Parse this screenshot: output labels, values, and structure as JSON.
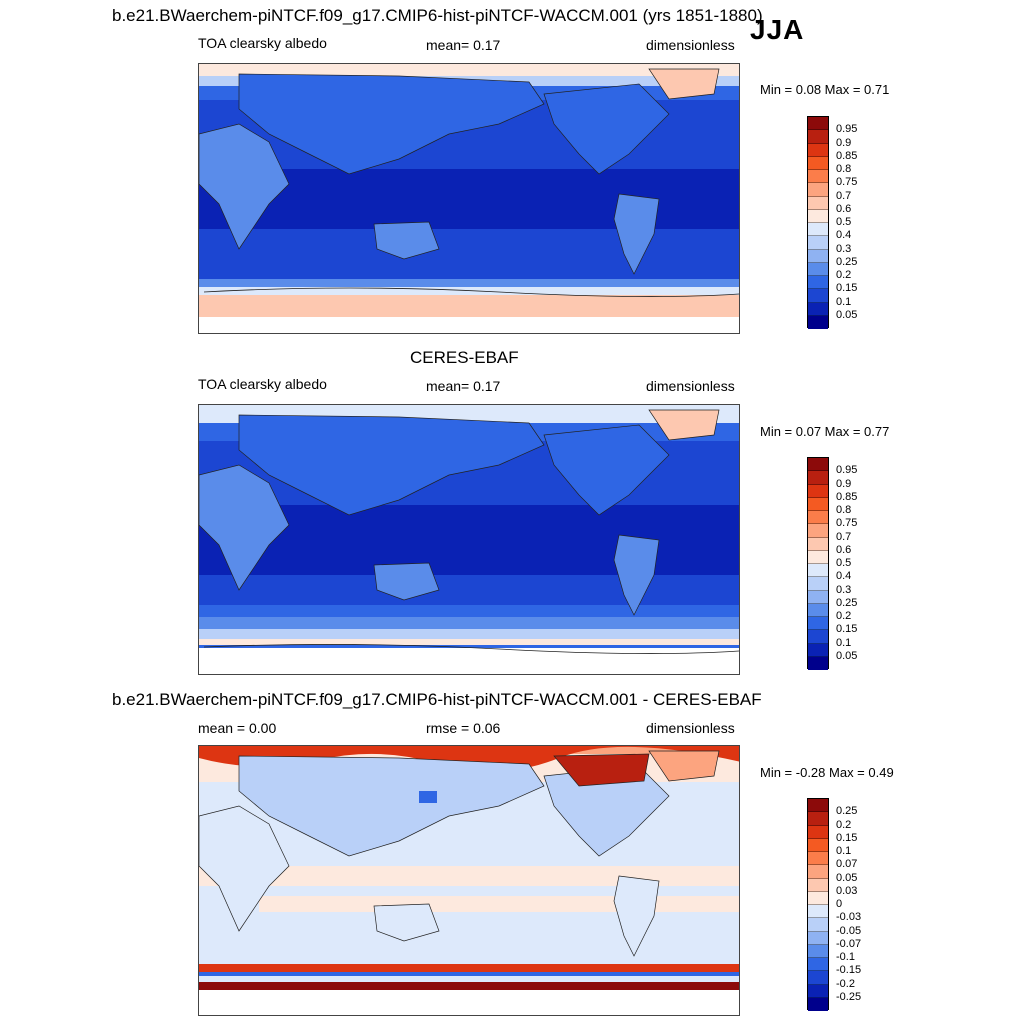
{
  "figure": {
    "season": "JJA"
  },
  "panels": [
    {
      "title": "b.e21.BWaerchem-piNTCF.f09_g17.CMIP6-hist-piNTCF-WACCM.001 (yrs 1851-1880)",
      "left_label": "TOA clearsky albedo",
      "center_label": "mean=   0.17",
      "right_label": "dimensionless",
      "minmax": "Min =   0.08 Max =   0.71",
      "map_name": "model-albedo-map",
      "colorbar_labels": [
        "0.95",
        "0.9",
        "0.85",
        "0.8",
        "0.75",
        "0.7",
        "0.6",
        "0.5",
        "0.4",
        "0.3",
        "0.25",
        "0.2",
        "0.15",
        "0.1",
        "0.05"
      ]
    },
    {
      "title": "CERES-EBAF",
      "left_label": "TOA clearsky albedo",
      "center_label": "mean=   0.17",
      "right_label": "dimensionless",
      "minmax": "Min =   0.07 Max =   0.77",
      "map_name": "obs-albedo-map",
      "colorbar_labels": [
        "0.95",
        "0.9",
        "0.85",
        "0.8",
        "0.75",
        "0.7",
        "0.6",
        "0.5",
        "0.4",
        "0.3",
        "0.25",
        "0.2",
        "0.15",
        "0.1",
        "0.05"
      ]
    },
    {
      "title": "b.e21.BWaerchem-piNTCF.f09_g17.CMIP6-hist-piNTCF-WACCM.001 - CERES-EBAF",
      "left_label": "mean =    0.00",
      "center_label": "rmse =    0.06",
      "right_label": "dimensionless",
      "minmax": "Min =   -0.28 Max =   0.49",
      "map_name": "difference-map",
      "colorbar_labels": [
        "0.25",
        "0.2",
        "0.15",
        "0.1",
        "0.07",
        "0.05",
        "0.03",
        "0",
        "-0.03",
        "-0.05",
        "-0.07",
        "-0.1",
        "-0.15",
        "-0.2",
        "-0.25"
      ]
    }
  ],
  "colors": {
    "albedo_scale": [
      "#8c0a0a",
      "#b82010",
      "#dd3512",
      "#f45a22",
      "#fb7d4a",
      "#fca47f",
      "#fdc8b0",
      "#fde9de",
      "#dde9fb",
      "#b9d0f8",
      "#8fb2f2",
      "#5a8cea",
      "#2f66e4",
      "#1c46d2",
      "#0a22b4",
      "#00008c"
    ],
    "diff_scale": [
      "#8c0a0a",
      "#b82010",
      "#dd3512",
      "#f45a22",
      "#fb7d4a",
      "#fca47f",
      "#fdc8b0",
      "#fde9de",
      "#f7f7f7",
      "#dde9fb",
      "#b9d0f8",
      "#8fb2f2",
      "#5a8cea",
      "#2f66e4",
      "#1c46d2",
      "#0a22b4",
      "#00008c"
    ]
  }
}
